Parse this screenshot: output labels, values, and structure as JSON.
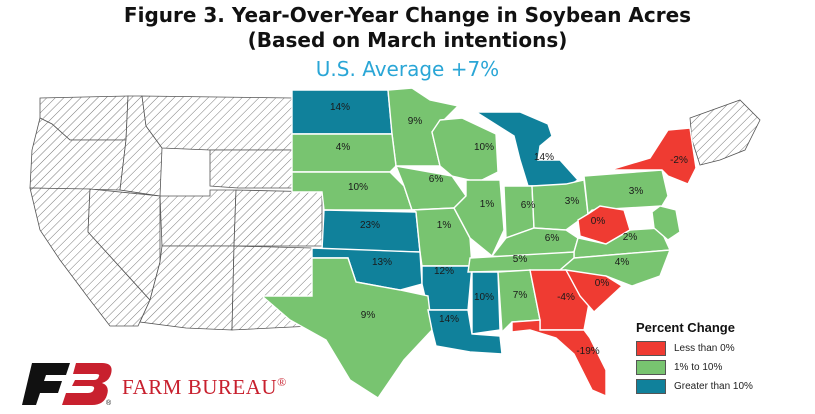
{
  "title_line1": "Figure 3. Year-Over-Year Change in Soybean Acres",
  "title_line2": "(Based on March intentions)",
  "subtitle": "U.S. Average +7%",
  "colors": {
    "less_than_0": "#ef3b32",
    "one_to_ten": "#78c470",
    "greater_than_10": "#10819b",
    "no_data_hatch": "#777777"
  },
  "legend": {
    "title": "Percent Change",
    "items": [
      {
        "label": "Less than 0%",
        "category": "less_than_0"
      },
      {
        "label": "1% to 10%",
        "category": "one_to_ten"
      },
      {
        "label": "Greater than 10%",
        "category": "greater_than_10"
      }
    ]
  },
  "states": [
    {
      "label": "14%",
      "category": "greater_than_10"
    },
    {
      "label": "9%",
      "category": "one_to_ten"
    },
    {
      "label": "4%",
      "category": "one_to_ten"
    },
    {
      "label": "10%",
      "category": "one_to_ten"
    },
    {
      "label": "10%",
      "category": "one_to_ten"
    },
    {
      "label": "14%",
      "category": "greater_than_10"
    },
    {
      "label": "6%",
      "category": "one_to_ten"
    },
    {
      "label": "23%",
      "category": "greater_than_10"
    },
    {
      "label": "1%",
      "category": "one_to_ten"
    },
    {
      "label": "1%",
      "category": "one_to_ten"
    },
    {
      "label": "6%",
      "category": "one_to_ten"
    },
    {
      "label": "3%",
      "category": "one_to_ten"
    },
    {
      "label": "3%",
      "category": "one_to_ten"
    },
    {
      "label": "-2%",
      "category": "less_than_0"
    },
    {
      "label": "0%",
      "category": "less_than_0"
    },
    {
      "label": "6%",
      "category": "one_to_ten"
    },
    {
      "label": "2%",
      "category": "one_to_ten"
    },
    {
      "label": "13%",
      "category": "greater_than_10"
    },
    {
      "label": "12%",
      "category": "greater_than_10"
    },
    {
      "label": "5%",
      "category": "one_to_ten"
    },
    {
      "label": "4%",
      "category": "one_to_ten"
    },
    {
      "label": "9%",
      "category": "one_to_ten"
    },
    {
      "label": "10%",
      "category": "greater_than_10"
    },
    {
      "label": "7%",
      "category": "one_to_ten"
    },
    {
      "label": "-4%",
      "category": "less_than_0"
    },
    {
      "label": "0%",
      "category": "less_than_0"
    },
    {
      "label": "14%",
      "category": "greater_than_10"
    },
    {
      "label": "-19%",
      "category": "less_than_0"
    }
  ],
  "brand": {
    "logo_letters": "FB",
    "name": "FARM BUREAU",
    "registered_mark": "®"
  }
}
